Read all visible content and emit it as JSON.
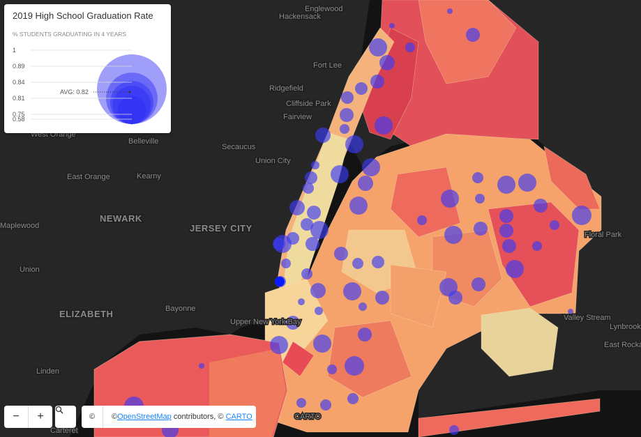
{
  "legend": {
    "title": "2019 High School Graduation Rate",
    "subtitle": "% STUDENTS GRADUATING IN 4 YEARS",
    "ticks": [
      1,
      0.89,
      0.84,
      0.81,
      0.75,
      0.58
    ],
    "average_label": "AVG: 0.82"
  },
  "place_labels": [
    "Englewood",
    "Hackensack",
    "Fort Lee",
    "Ridgefield",
    "Cliffside Park",
    "Fairview",
    "Secaucus",
    "Union City",
    "West Orange",
    "Belleville",
    "East Orange",
    "Kearny",
    "Maplewood",
    "NEWARK",
    "JERSEY CITY",
    "Union",
    "ELIZABETH",
    "Bayonne",
    "Linden",
    "Carteret",
    "Upper New York Bay",
    "Valley Stream",
    "Lynbrook",
    "East Rockaway",
    "Floral Park",
    "CARTO"
  ],
  "controls": {
    "zoom_out": "−",
    "zoom_in": "+"
  },
  "attribution": {
    "symbol": "©",
    "prefix": "© ",
    "osm": "OpenStreetMap",
    "middle": " contributors, © ",
    "carto": "CARTO"
  }
}
